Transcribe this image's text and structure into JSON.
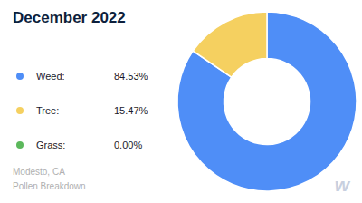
{
  "chart_data": {
    "type": "pie",
    "title": "December 2022",
    "subtitle": [
      "Modesto, CA",
      "Pollen Breakdown"
    ],
    "categories": [
      "Weed:",
      "Tree:",
      "Grass:"
    ],
    "values": [
      84.53,
      15.47,
      0.0
    ],
    "value_labels": [
      "84.53%",
      "15.47%",
      "0.00%"
    ],
    "colors": [
      "#4f8ef7",
      "#f5d060",
      "#5cb85c"
    ],
    "legend": "left",
    "annotations": [
      "w"
    ]
  }
}
